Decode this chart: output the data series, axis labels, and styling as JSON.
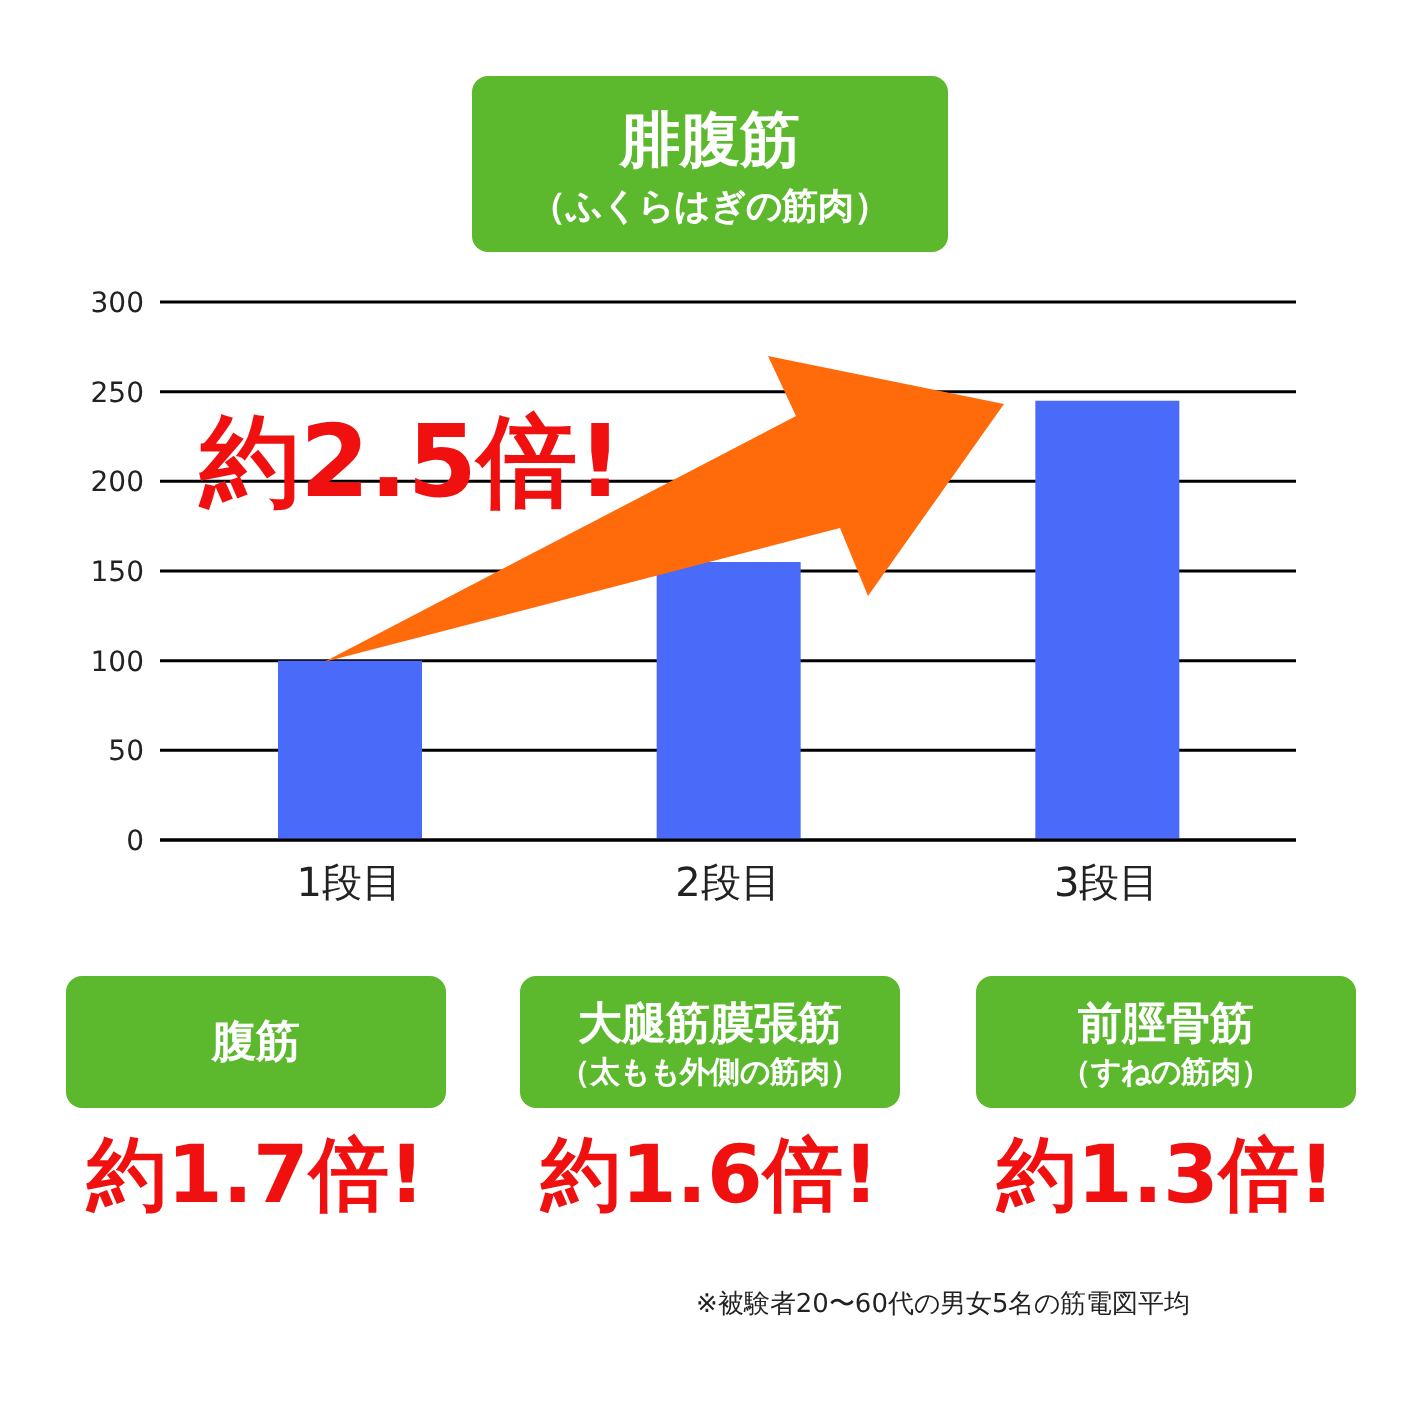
{
  "chart_data": {
    "type": "bar",
    "title": "腓腹筋",
    "subtitle": "（ふくらはぎの筋肉）",
    "categories": [
      "1段目",
      "2段目",
      "3段目"
    ],
    "values": [
      100,
      155,
      245
    ],
    "color": "#4a6bfa",
    "ylim": [
      0,
      300
    ],
    "yticks": [
      0,
      50,
      100,
      150,
      200,
      250,
      300
    ],
    "grid": "y",
    "legend": false,
    "annotations": [
      "約2.5倍!",
      "腹筋",
      "約1.7倍!",
      "大腿筋膜張筋",
      "（太もも外側の筋肉）",
      "約1.6倍!",
      "前脛骨筋",
      "（すねの筋肉）",
      "約1.3倍!",
      "※被験者20〜60代の男女5名の筋電図平均"
    ]
  }
}
